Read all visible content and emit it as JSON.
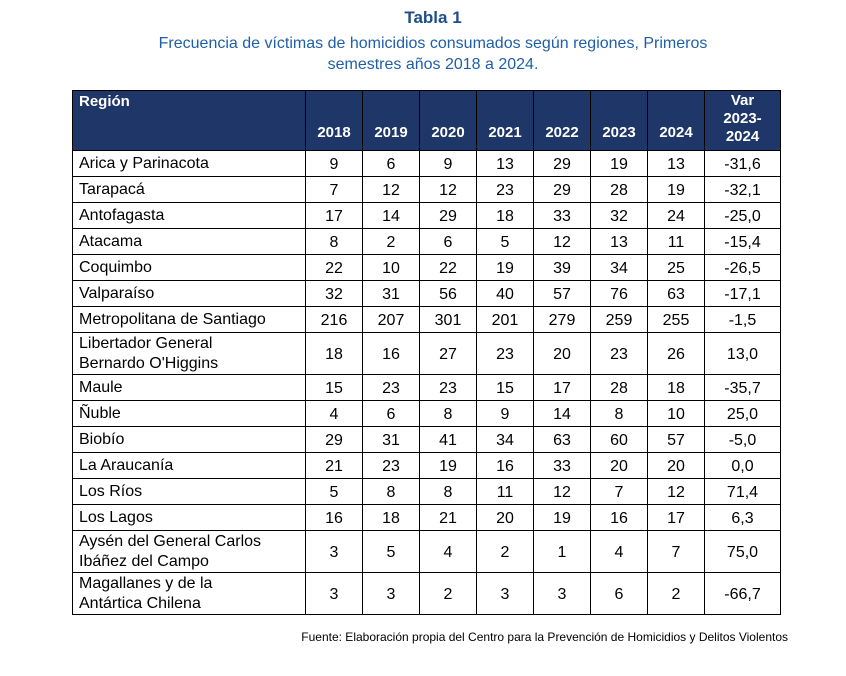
{
  "title": "Tabla 1",
  "subtitle_line1": "Frecuencia de víctimas de homicidios consumados según regiones, Primeros",
  "subtitle_line2": "semestres años 2018 a 2024.",
  "table": {
    "region_header": "Región",
    "years": [
      "2018",
      "2019",
      "2020",
      "2021",
      "2022",
      "2023",
      "2024"
    ],
    "var_header": [
      "Var",
      "2023-",
      "2024"
    ],
    "rows": [
      {
        "name": [
          "Arica y Parinacota"
        ],
        "values": [
          "9",
          "6",
          "9",
          "13",
          "29",
          "19",
          "13",
          "-31,6"
        ]
      },
      {
        "name": [
          "Tarapacá"
        ],
        "values": [
          "7",
          "12",
          "12",
          "23",
          "29",
          "28",
          "19",
          "-32,1"
        ]
      },
      {
        "name": [
          "Antofagasta"
        ],
        "values": [
          "17",
          "14",
          "29",
          "18",
          "33",
          "32",
          "24",
          "-25,0"
        ]
      },
      {
        "name": [
          "Atacama"
        ],
        "values": [
          "8",
          "2",
          "6",
          "5",
          "12",
          "13",
          "11",
          "-15,4"
        ]
      },
      {
        "name": [
          "Coquimbo"
        ],
        "values": [
          "22",
          "10",
          "22",
          "19",
          "39",
          "34",
          "25",
          "-26,5"
        ]
      },
      {
        "name": [
          "Valparaíso"
        ],
        "values": [
          "32",
          "31",
          "56",
          "40",
          "57",
          "76",
          "63",
          "-17,1"
        ]
      },
      {
        "name": [
          "Metropolitana de Santiago"
        ],
        "values": [
          "216",
          "207",
          "301",
          "201",
          "279",
          "259",
          "255",
          "-1,5"
        ]
      },
      {
        "name": [
          "Libertador General",
          "Bernardo O'Higgins"
        ],
        "values": [
          "18",
          "16",
          "27",
          "23",
          "20",
          "23",
          "26",
          "13,0"
        ]
      },
      {
        "name": [
          "Maule"
        ],
        "values": [
          "15",
          "23",
          "23",
          "15",
          "17",
          "28",
          "18",
          "-35,7"
        ]
      },
      {
        "name": [
          "Ñuble"
        ],
        "values": [
          "4",
          "6",
          "8",
          "9",
          "14",
          "8",
          "10",
          "25,0"
        ]
      },
      {
        "name": [
          "Biobío"
        ],
        "values": [
          "29",
          "31",
          "41",
          "34",
          "63",
          "60",
          "57",
          "-5,0"
        ]
      },
      {
        "name": [
          "La Araucanía"
        ],
        "values": [
          "21",
          "23",
          "19",
          "16",
          "33",
          "20",
          "20",
          "0,0"
        ]
      },
      {
        "name": [
          "Los Ríos"
        ],
        "values": [
          "5",
          "8",
          "8",
          "11",
          "12",
          "7",
          "12",
          "71,4"
        ]
      },
      {
        "name": [
          "Los Lagos"
        ],
        "values": [
          "16",
          "18",
          "21",
          "20",
          "19",
          "16",
          "17",
          "6,3"
        ]
      },
      {
        "name": [
          "Aysén del General Carlos",
          "Ibáñez del Campo"
        ],
        "values": [
          "3",
          "5",
          "4",
          "2",
          "1",
          "4",
          "7",
          "75,0"
        ]
      },
      {
        "name": [
          "Magallanes y de la",
          "Antártica Chilena"
        ],
        "values": [
          "3",
          "3",
          "2",
          "3",
          "3",
          "6",
          "2",
          "-66,7"
        ]
      }
    ]
  },
  "source": "Fuente: Elaboración propia del Centro para la Prevención de Homicidios y Delitos Violentos",
  "colors": {
    "title": "#1f4e8c",
    "header_bg": "#1f3668",
    "header_text": "#ffffff"
  }
}
